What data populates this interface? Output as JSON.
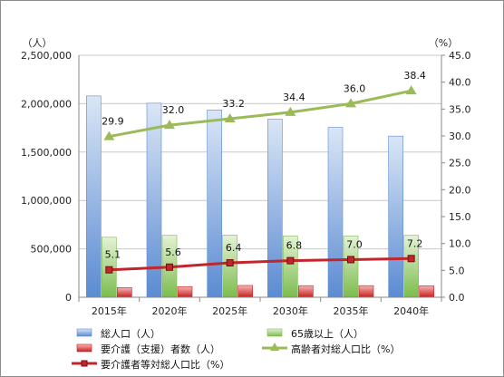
{
  "chart_data": {
    "type": "bar",
    "categories": [
      "2015年",
      "2020年",
      "2025年",
      "2030年",
      "2035年",
      "2040年"
    ],
    "y_left": {
      "unit_label": "（人）",
      "range": [
        0,
        2500000
      ],
      "ticks": [
        0,
        500000,
        1000000,
        1500000,
        2000000,
        2500000
      ],
      "tick_labels": [
        "0",
        "500,000",
        "1,000,000",
        "1,500,000",
        "2,000,000",
        "2,500,000"
      ]
    },
    "y_right": {
      "unit_label": "（%）",
      "range": [
        0,
        45
      ],
      "ticks": [
        0,
        5,
        10,
        15,
        20,
        25,
        30,
        35,
        40,
        45
      ],
      "tick_labels": [
        "0.0",
        "5.0",
        "10.0",
        "15.0",
        "20.0",
        "25.0",
        "30.0",
        "35.0",
        "40.0",
        "45.0"
      ]
    },
    "gridlines": true,
    "legend_position": "bottom",
    "series": [
      {
        "name": "総人口（人）",
        "kind": "bar",
        "axis": "left",
        "values": [
          2080000,
          2005000,
          1935000,
          1840000,
          1755000,
          1665000
        ],
        "color_top": "#dae6f6",
        "color_bottom": "#5b8bd2"
      },
      {
        "name": "65歳以上（人）",
        "kind": "bar",
        "axis": "left",
        "values": [
          620000,
          640000,
          642000,
          632000,
          632000,
          640000
        ],
        "color_top": "#e4f2d6",
        "color_bottom": "#7cbc4c"
      },
      {
        "name": "要介護（支援）者数（人）",
        "kind": "bar",
        "axis": "left",
        "values": [
          100000,
          110000,
          122000,
          120000,
          120000,
          118000
        ],
        "color_top": "#f6b6b6",
        "color_bottom": "#c81e1e"
      },
      {
        "name": "高齢者対総人口比（%）",
        "kind": "line",
        "axis": "right",
        "marker": "triangle",
        "values": [
          29.9,
          32.0,
          33.2,
          34.4,
          36.0,
          38.4
        ],
        "labels": [
          "29.9",
          "32.0",
          "33.2",
          "34.4",
          "36.0",
          "38.4"
        ],
        "color": "#9bbb59"
      },
      {
        "name": "要介護者等対総人口比（%）",
        "kind": "line",
        "axis": "right",
        "marker": "square",
        "values": [
          5.1,
          5.6,
          6.4,
          6.8,
          7.0,
          7.2
        ],
        "labels": [
          "5.1",
          "5.6",
          "6.4",
          "6.8",
          "7.0",
          "7.2"
        ],
        "color": "#c0262b"
      }
    ]
  },
  "colors": {
    "grid": "#c8c8c8",
    "axis": "#888888"
  }
}
